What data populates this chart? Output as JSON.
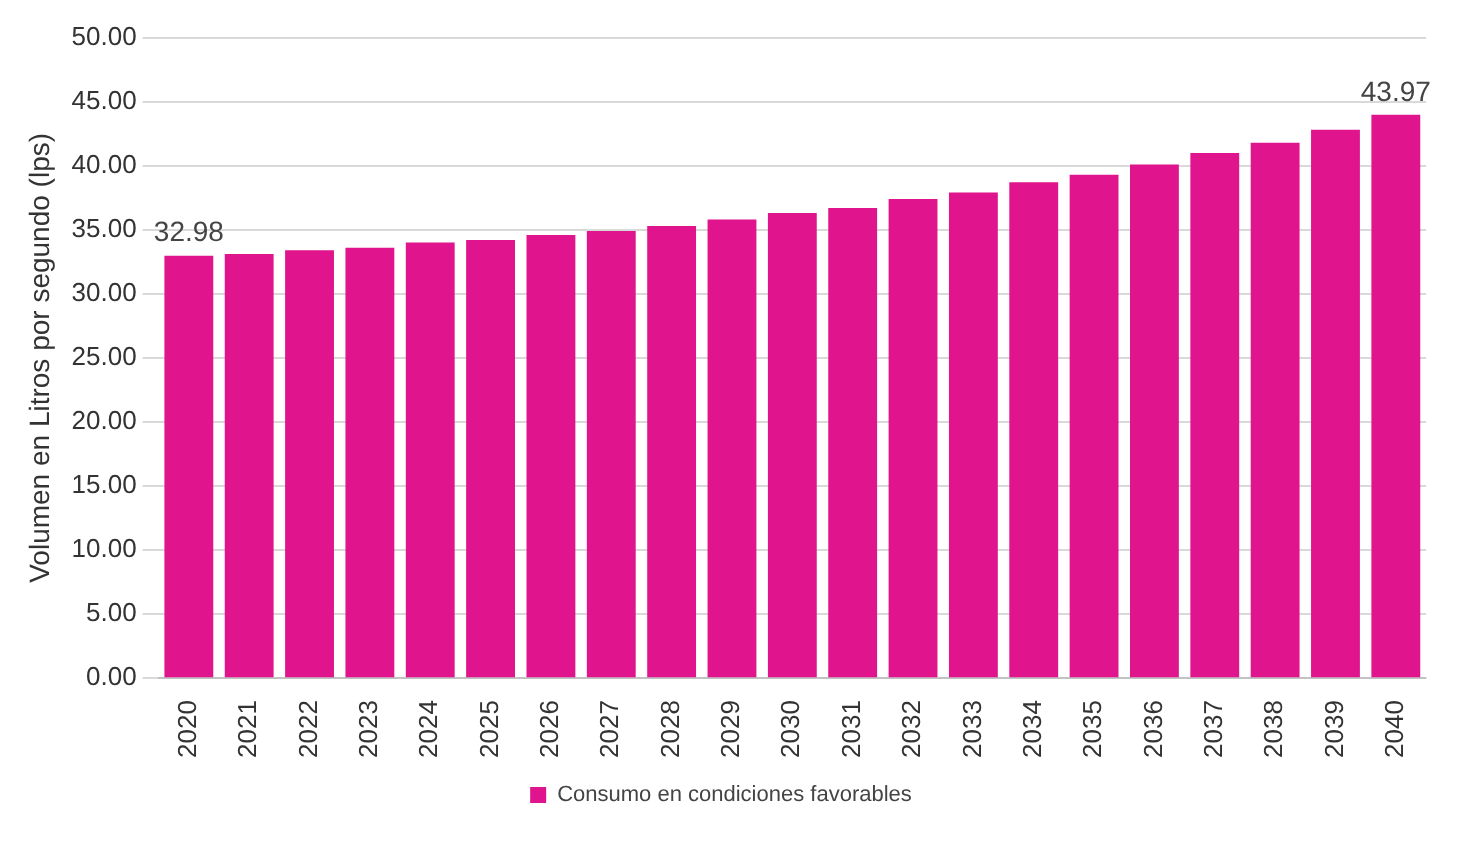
{
  "chart_data": {
    "type": "bar",
    "ylabel": "Volumen en Litros por segundo (lps)",
    "categories": [
      "2020",
      "2021",
      "2022",
      "2023",
      "2024",
      "2025",
      "2026",
      "2027",
      "2028",
      "2029",
      "2030",
      "2031",
      "2032",
      "2033",
      "2034",
      "2035",
      "2036",
      "2037",
      "2038",
      "2039",
      "2040"
    ],
    "series": [
      {
        "name": "Consumo en condiciones favorables",
        "color": "#e0148c",
        "values": [
          32.98,
          33.1,
          33.4,
          33.6,
          34.0,
          34.2,
          34.6,
          34.9,
          35.3,
          35.8,
          36.3,
          36.7,
          37.4,
          37.9,
          38.7,
          39.3,
          40.1,
          41.0,
          41.8,
          42.8,
          43.97
        ],
        "value_labels": [
          "32.98",
          null,
          null,
          null,
          null,
          null,
          null,
          null,
          null,
          null,
          null,
          null,
          null,
          null,
          null,
          null,
          null,
          null,
          null,
          null,
          "43.97"
        ]
      }
    ],
    "ylim": [
      0,
      50
    ],
    "yticks": [
      {
        "value": 0,
        "label": "0.00"
      },
      {
        "value": 5,
        "label": "5.00"
      },
      {
        "value": 10,
        "label": "10.00"
      },
      {
        "value": 15,
        "label": "15.00"
      },
      {
        "value": 20,
        "label": "20.00"
      },
      {
        "value": 25,
        "label": "25.00"
      },
      {
        "value": 30,
        "label": "30.00"
      },
      {
        "value": 35,
        "label": "35.00"
      },
      {
        "value": 40,
        "label": "40.00"
      },
      {
        "value": 45,
        "label": "45.00"
      },
      {
        "value": 50,
        "label": "50.00"
      }
    ],
    "grid": "y",
    "legend": "bottom"
  }
}
